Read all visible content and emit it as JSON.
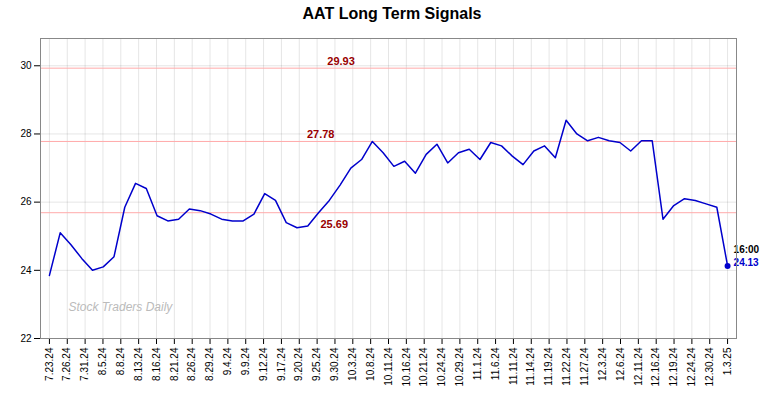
{
  "chart_data": {
    "type": "line",
    "title": "AAT Long Term Signals",
    "x": [
      0,
      0.603175,
      1.206349,
      1.809524,
      2.412698,
      3.015873,
      3.619048,
      4.222222,
      4.825397,
      5.428571,
      6.031746,
      6.634921,
      7.238095,
      7.84127,
      8.444444,
      9.047619,
      9.650794,
      10.253968,
      10.857143,
      11.460317,
      12.063492,
      12.666667,
      13.269841,
      13.873016,
      14.47619,
      15.079365,
      15.68254,
      16.285714,
      16.888889,
      17.492063,
      18.095238,
      18.698413,
      19.301587,
      19.904762,
      20.507937,
      21.111111,
      21.714286,
      22.31746,
      22.920635,
      23.52381,
      24.126984,
      24.730159,
      25.333333,
      25.936508,
      26.539683,
      27.142857,
      27.746032,
      28.349206,
      28.952381,
      29.555556,
      30.15873,
      30.761905,
      31.365079,
      31.968254,
      32.571429,
      33.174603,
      33.777778,
      34.380952,
      34.984127,
      35.587302,
      36.190476,
      36.793651,
      37.396825,
      38
    ],
    "values": [
      23.85,
      25.1,
      24.75,
      24.35,
      24.0,
      24.1,
      24.4,
      25.85,
      26.55,
      26.4,
      25.6,
      25.45,
      25.5,
      25.8,
      25.75,
      25.65,
      25.5,
      25.45,
      25.45,
      25.65,
      26.25,
      26.05,
      25.4,
      25.25,
      25.3,
      25.69,
      26.05,
      26.5,
      27.0,
      27.25,
      27.78,
      27.45,
      27.05,
      27.2,
      26.85,
      27.4,
      27.7,
      27.15,
      27.45,
      27.55,
      27.25,
      27.75,
      27.65,
      27.35,
      27.1,
      27.5,
      27.65,
      27.3,
      28.4,
      28.0,
      27.8,
      27.9,
      27.8,
      27.75,
      27.5,
      27.8,
      27.8,
      25.5,
      25.9,
      26.1,
      26.05,
      25.95,
      25.85,
      24.13
    ],
    "color": "#0000cc",
    "xlim": [
      -0.5,
      38.5
    ],
    "xticks": [
      {
        "value": 0,
        "label": "7.23.24"
      },
      {
        "value": 1,
        "label": "7.26.24"
      },
      {
        "value": 2,
        "label": "7.31.24"
      },
      {
        "value": 3,
        "label": "8.5.24"
      },
      {
        "value": 4,
        "label": "8.8.24"
      },
      {
        "value": 5,
        "label": "8.13.24"
      },
      {
        "value": 6,
        "label": "8.16.24"
      },
      {
        "value": 7,
        "label": "8.21.24"
      },
      {
        "value": 8,
        "label": "8.26.24"
      },
      {
        "value": 9,
        "label": "8.29.24"
      },
      {
        "value": 10,
        "label": "9.4.24"
      },
      {
        "value": 11,
        "label": "9.9.24"
      },
      {
        "value": 12,
        "label": "9.12.24"
      },
      {
        "value": 13,
        "label": "9.17.24"
      },
      {
        "value": 14,
        "label": "9.20.24"
      },
      {
        "value": 15,
        "label": "9.25.24"
      },
      {
        "value": 16,
        "label": "9.30.24"
      },
      {
        "value": 17,
        "label": "10.3.24"
      },
      {
        "value": 18,
        "label": "10.8.24"
      },
      {
        "value": 19,
        "label": "10.11.24"
      },
      {
        "value": 20,
        "label": "10.16.24"
      },
      {
        "value": 21,
        "label": "10.21.24"
      },
      {
        "value": 22,
        "label": "10.24.24"
      },
      {
        "value": 23,
        "label": "10.29.24"
      },
      {
        "value": 24,
        "label": "11.1.24"
      },
      {
        "value": 25,
        "label": "11.6.24"
      },
      {
        "value": 26,
        "label": "11.11.24"
      },
      {
        "value": 27,
        "label": "11.14.24"
      },
      {
        "value": 28,
        "label": "11.19.24"
      },
      {
        "value": 29,
        "label": "11.22.24"
      },
      {
        "value": 30,
        "label": "11.27.24"
      },
      {
        "value": 31,
        "label": "12.3.24"
      },
      {
        "value": 32,
        "label": "12.6.24"
      },
      {
        "value": 33,
        "label": "12.11.24"
      },
      {
        "value": 34,
        "label": "12.16.24"
      },
      {
        "value": 35,
        "label": "12.19.24"
      },
      {
        "value": 36,
        "label": "12.24.24"
      },
      {
        "value": 37,
        "label": "12.30.24"
      },
      {
        "value": 38,
        "label": "1.3.25"
      }
    ],
    "ylim": [
      22,
      30.8
    ],
    "yticks": [
      22,
      24,
      26,
      28,
      30
    ],
    "grid": true,
    "reference_lines": {
      "values": [
        29.93,
        27.78,
        25.69
      ],
      "labels": [
        "29.93",
        "27.78",
        "25.69"
      ],
      "color": "#ffaaaa",
      "label_color": "#990000"
    },
    "end_label": {
      "time": "16:00",
      "value": 24.13,
      "color": "#0000cc"
    },
    "watermark": {
      "text": "Stock Traders Daily",
      "color": "#bbbbbb"
    }
  }
}
